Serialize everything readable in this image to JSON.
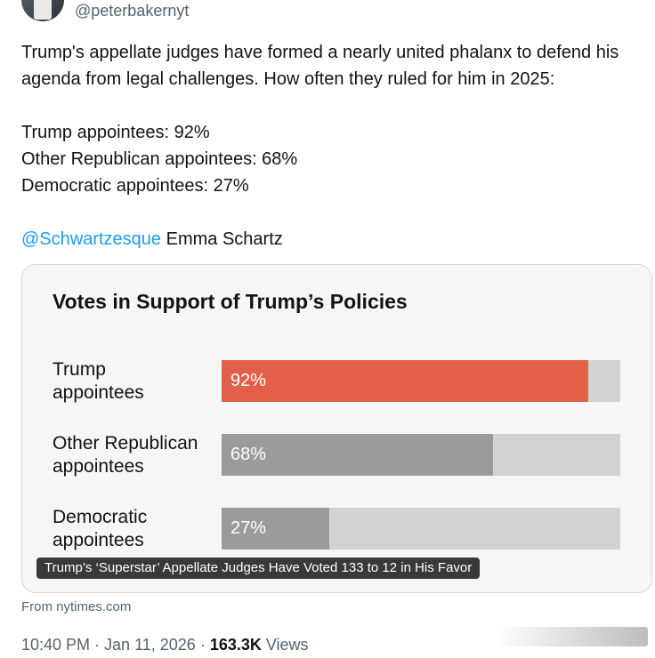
{
  "author": {
    "handle": "@peterbakernyt"
  },
  "tweet": {
    "intro": "Trump's appellate judges have formed a nearly united phalanx to defend his agenda from legal challenges. How often they ruled for him in 2025:",
    "stats": [
      "Trump appointees: 92%",
      "Other Republican appointees: 68%",
      "Democratic appointees: 27%"
    ],
    "credit_mention": "@Schwartzesque",
    "credit_name": " Emma Schartz"
  },
  "card": {
    "caption": "Trump’s ‘Superstar’ Appellate Judges Have Voted 133 to 12 in His Favor",
    "source": "From nytimes.com"
  },
  "chart_data": {
    "type": "bar",
    "orientation": "horizontal",
    "title": "Votes in Support of Trump’s Policies",
    "categories": [
      [
        "Trump",
        "appointees"
      ],
      [
        "Other Republican",
        "appointees"
      ],
      [
        "Democratic",
        "appointees"
      ]
    ],
    "values": [
      92,
      68,
      27
    ],
    "value_labels": [
      "92%",
      "68%",
      "27%"
    ],
    "xlim": [
      0,
      100
    ],
    "colors": [
      "#e2604a",
      "#9b9b9b",
      "#9b9b9b"
    ],
    "track_color": "#d2d2d2"
  },
  "meta": {
    "time": "10:40 PM",
    "sep1": " · ",
    "date": "Jan 11, 2026",
    "sep2": " · ",
    "views_count": "163.3K",
    "views_label": " Views"
  }
}
